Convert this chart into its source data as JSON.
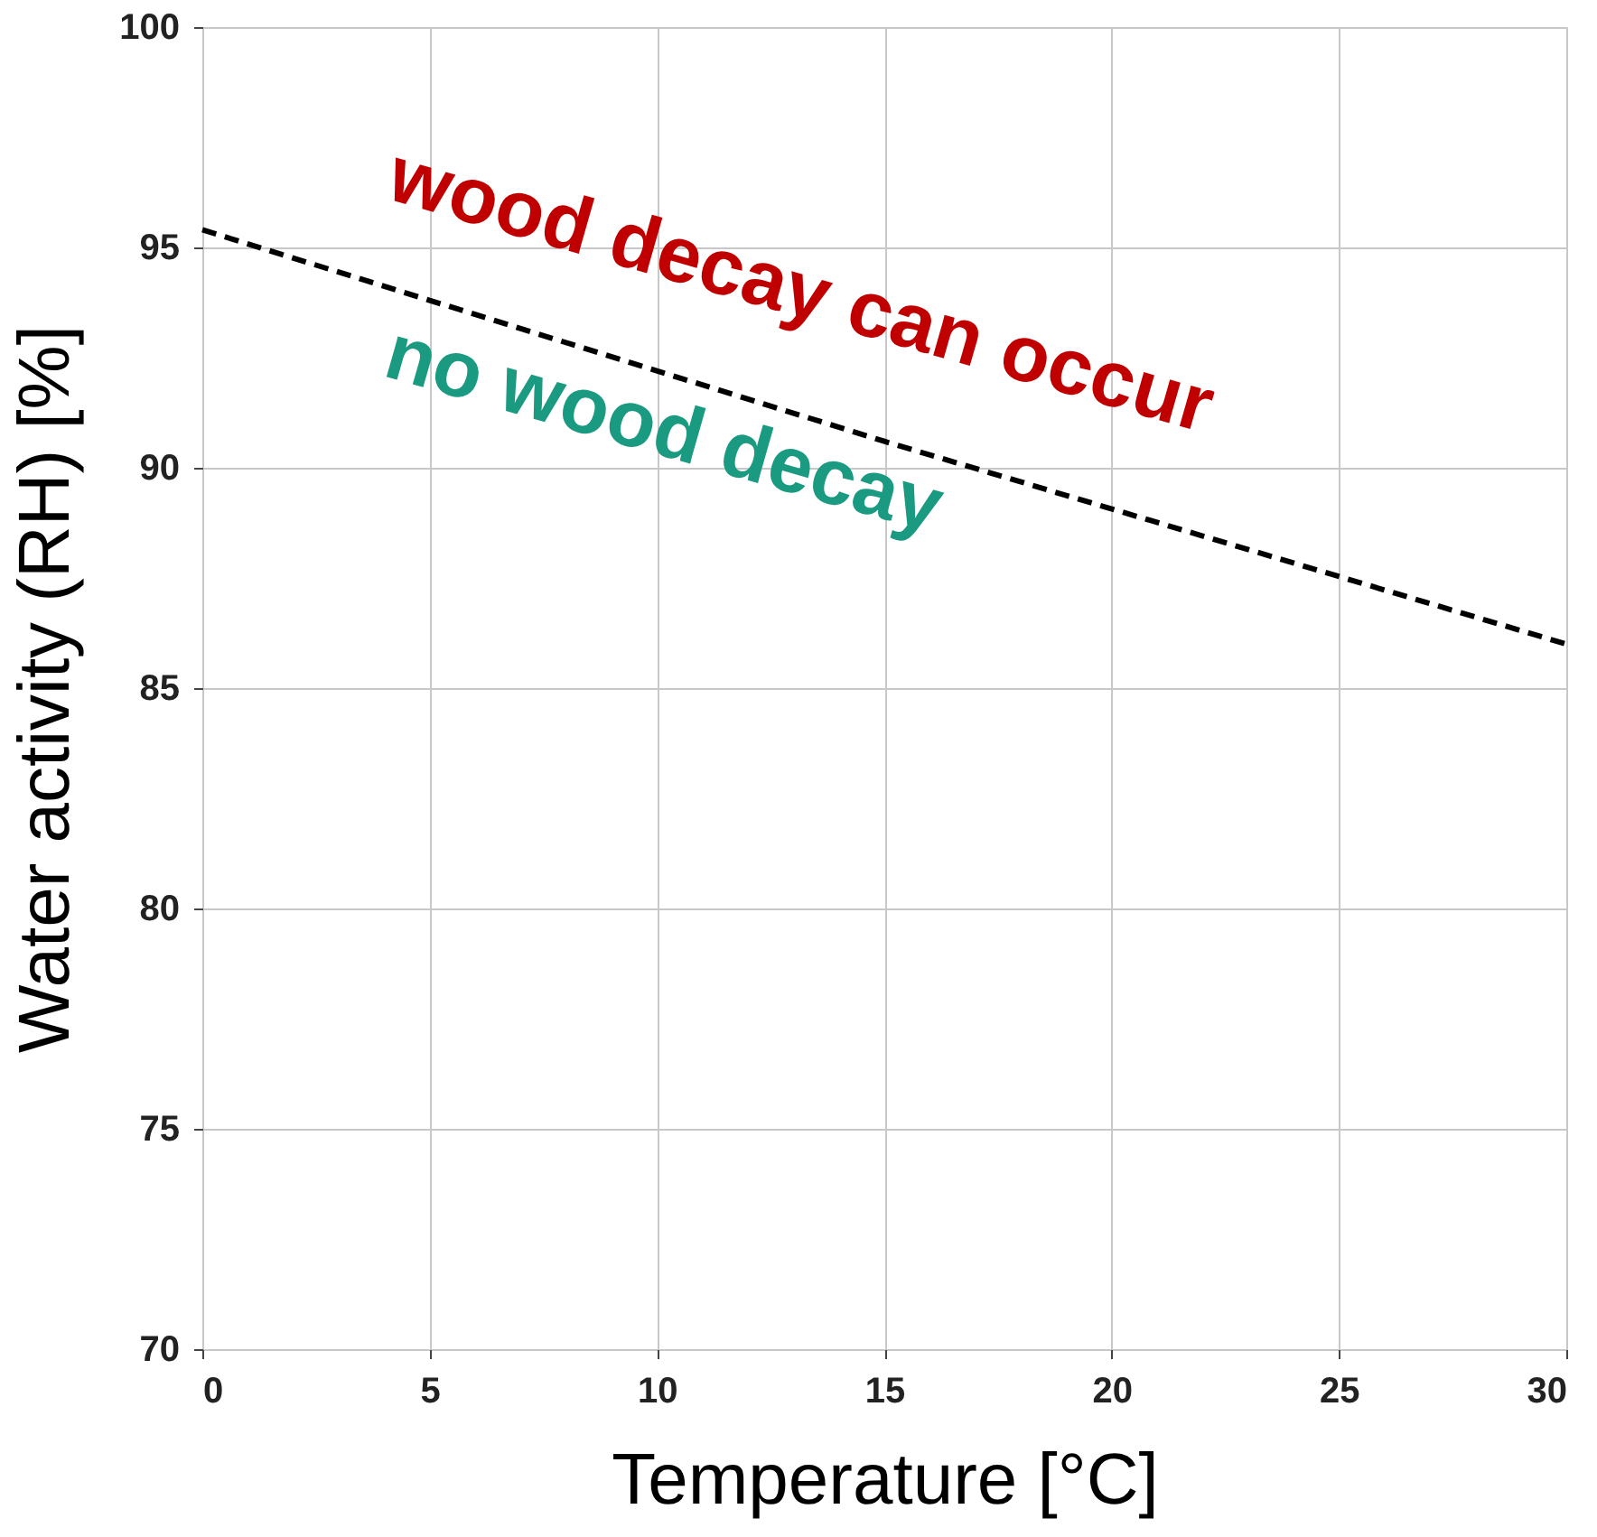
{
  "chart_data": {
    "type": "line",
    "xlabel": "Temperature [°C]",
    "ylabel": "Water activity (RH) [%]",
    "x": [
      0,
      15,
      30
    ],
    "series": [
      {
        "color": "#000000",
        "values": [
          95.4,
          90.6,
          86.0
        ]
      }
    ],
    "xlim": [
      0,
      30
    ],
    "xticks": [
      0,
      5,
      10,
      15,
      20,
      25,
      30
    ],
    "ylim": [
      70,
      100
    ],
    "yticks": [
      70,
      75,
      80,
      85,
      90,
      95,
      100
    ],
    "grid": true,
    "line_style": "dashed",
    "marker": "none",
    "annotations": [
      "wood decay can occur",
      "no wood decay"
    ]
  }
}
